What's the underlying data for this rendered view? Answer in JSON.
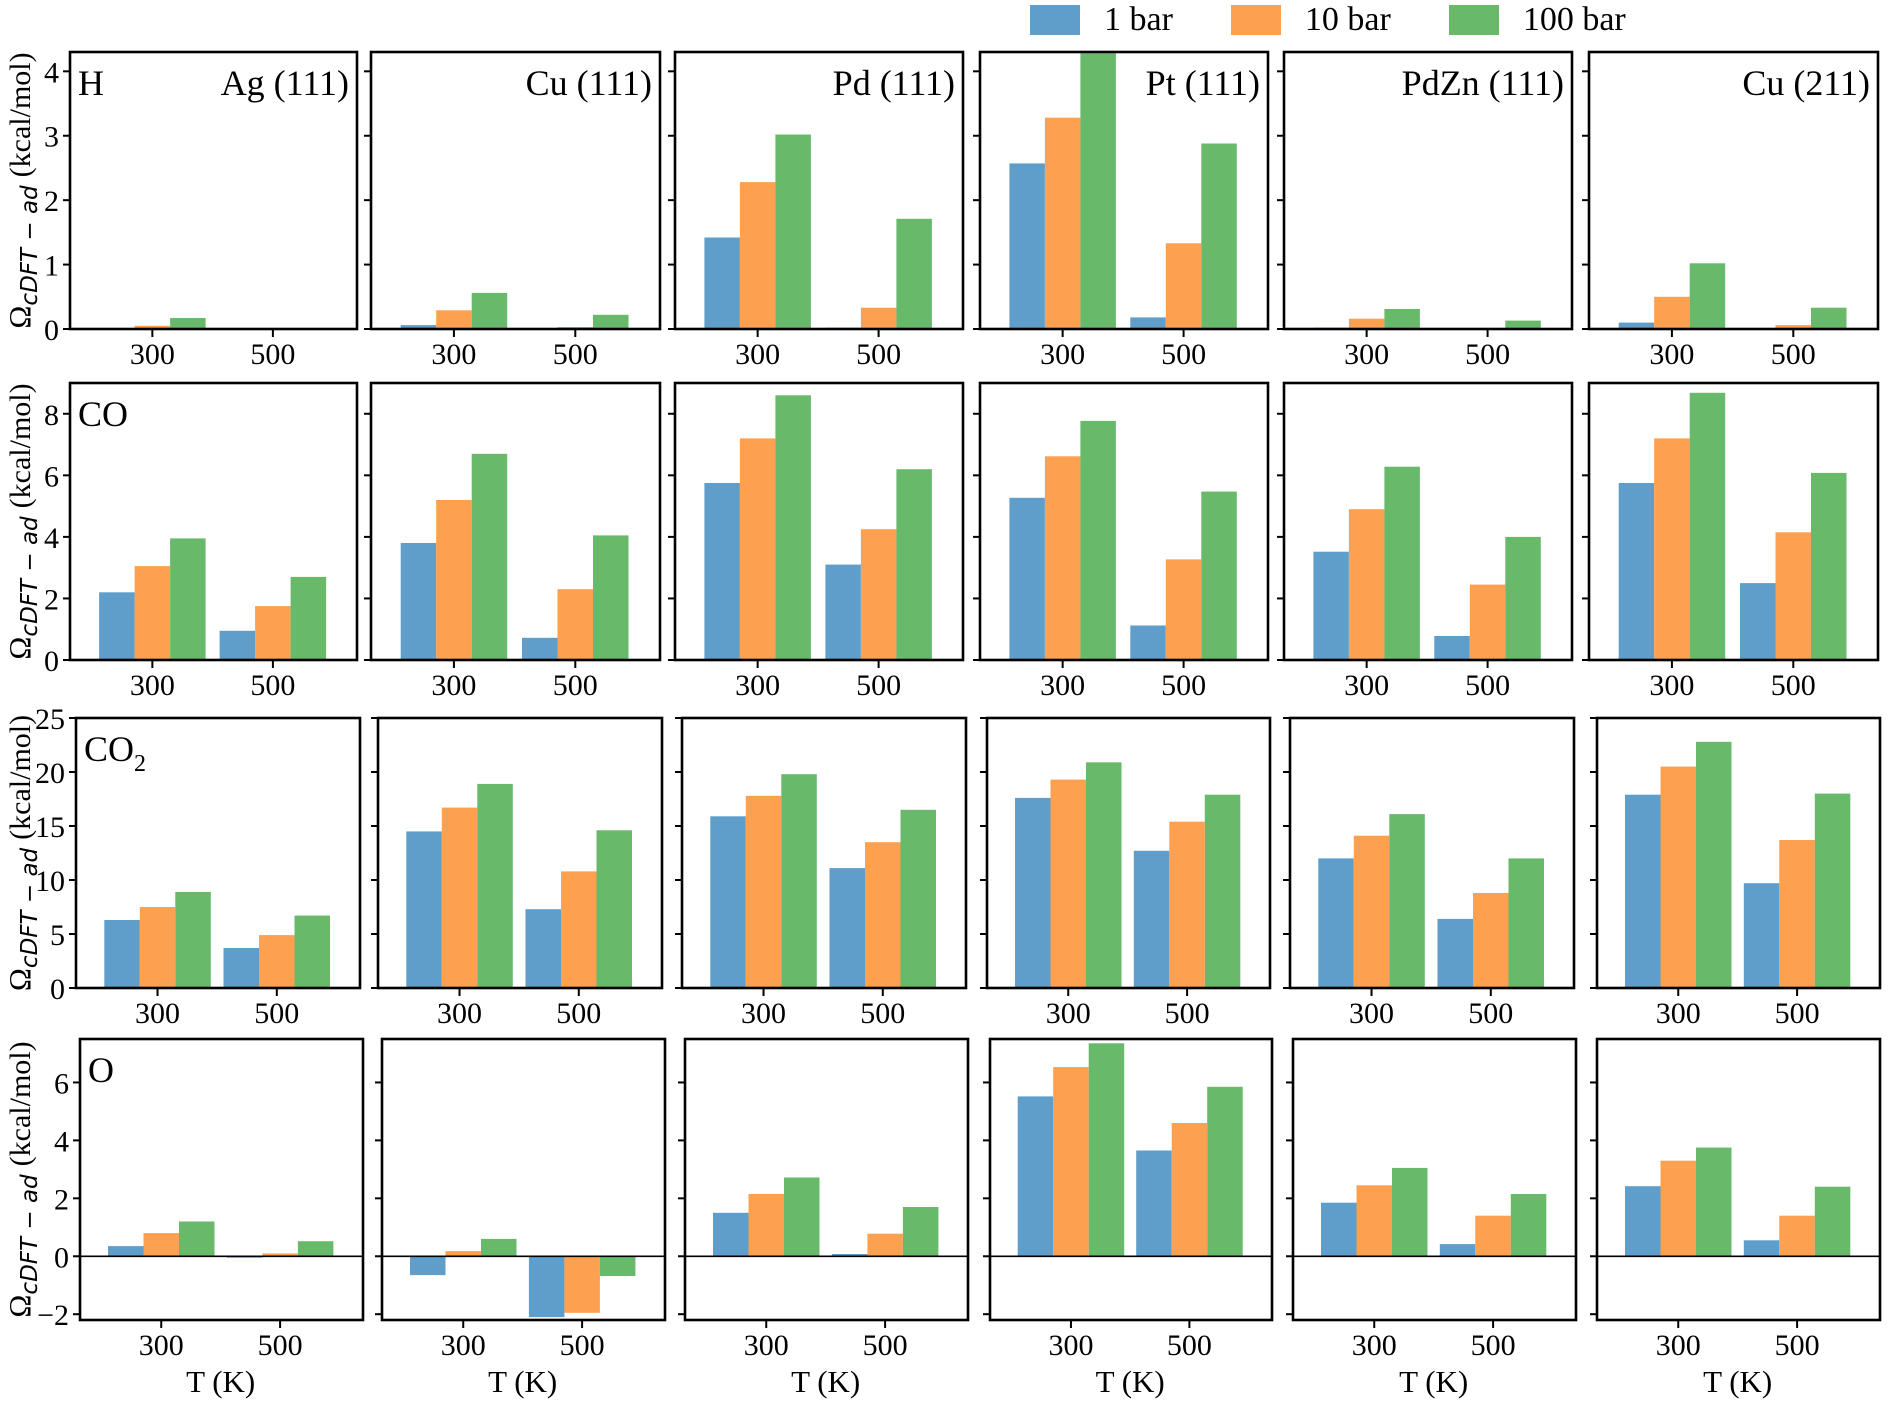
{
  "legend": [
    {
      "label": "1 bar",
      "color": "#5f9ecb"
    },
    {
      "label": "10 bar",
      "color": "#fda04f"
    },
    {
      "label": "100 bar",
      "color": "#69b96a"
    }
  ],
  "chart_data": {
    "type": "bar",
    "title": "",
    "xlabel": "T (K)",
    "ylabel": "Ω_cDFT − ad (kcal/mol)",
    "ylabel_main": "Ω",
    "ylabel_sub": "cDFT − ad",
    "ylabel_unit": "(kcal/mol)",
    "categories": [
      "300",
      "500"
    ],
    "series_names": [
      "1 bar",
      "10 bar",
      "100 bar"
    ],
    "columns": [
      "Ag (111)",
      "Cu (111)",
      "Pd (111)",
      "Pt (111)",
      "PdZn (111)",
      "Cu (211)"
    ],
    "legend_position": "top-right",
    "grid": false,
    "rows": [
      {
        "adsorbate": "H",
        "adsorbate_sub": "",
        "ylim": [
          0,
          4.3
        ],
        "yticks": [
          "0",
          "1",
          "2",
          "3",
          "4"
        ],
        "ytick_values": [
          0,
          1,
          2,
          3,
          4
        ],
        "zero_line": false,
        "panels": [
          {
            "surface": "Ag (111)",
            "series": [
              {
                "name": "1 bar",
                "values": [
                  0.0,
                  0.0
                ]
              },
              {
                "name": "10 bar",
                "values": [
                  0.05,
                  0.0
                ]
              },
              {
                "name": "100 bar",
                "values": [
                  0.17,
                  0.0
                ]
              }
            ]
          },
          {
            "surface": "Cu (111)",
            "series": [
              {
                "name": "1 bar",
                "values": [
                  0.06,
                  0.0
                ]
              },
              {
                "name": "10 bar",
                "values": [
                  0.29,
                  0.03
                ]
              },
              {
                "name": "100 bar",
                "values": [
                  0.56,
                  0.22
                ]
              }
            ]
          },
          {
            "surface": "Pd (111)",
            "series": [
              {
                "name": "1 bar",
                "values": [
                  1.42,
                  0.02
                ]
              },
              {
                "name": "10 bar",
                "values": [
                  2.28,
                  0.33
                ]
              },
              {
                "name": "100 bar",
                "values": [
                  3.02,
                  1.71
                ]
              }
            ]
          },
          {
            "surface": "Pt (111)",
            "series": [
              {
                "name": "1 bar",
                "values": [
                  2.57,
                  0.18
                ]
              },
              {
                "name": "10 bar",
                "values": [
                  3.28,
                  1.33
                ]
              },
              {
                "name": "100 bar",
                "values": [
                  4.28,
                  2.88
                ]
              }
            ]
          },
          {
            "surface": "PdZn (111)",
            "series": [
              {
                "name": "1 bar",
                "values": [
                  0.02,
                  0.0
                ]
              },
              {
                "name": "10 bar",
                "values": [
                  0.16,
                  0.01
                ]
              },
              {
                "name": "100 bar",
                "values": [
                  0.31,
                  0.13
                ]
              }
            ]
          },
          {
            "surface": "Cu (211)",
            "series": [
              {
                "name": "1 bar",
                "values": [
                  0.1,
                  0.0
                ]
              },
              {
                "name": "10 bar",
                "values": [
                  0.5,
                  0.06
                ]
              },
              {
                "name": "100 bar",
                "values": [
                  1.02,
                  0.33
                ]
              }
            ]
          }
        ]
      },
      {
        "adsorbate": "CO",
        "adsorbate_sub": "",
        "ylim": [
          0,
          9.0
        ],
        "yticks": [
          "0",
          "2",
          "4",
          "6",
          "8"
        ],
        "ytick_values": [
          0,
          2,
          4,
          6,
          8
        ],
        "zero_line": false,
        "panels": [
          {
            "surface": "Ag (111)",
            "series": [
              {
                "name": "1 bar",
                "values": [
                  2.2,
                  0.95
                ]
              },
              {
                "name": "10 bar",
                "values": [
                  3.05,
                  1.75
                ]
              },
              {
                "name": "100 bar",
                "values": [
                  3.95,
                  2.7
                ]
              }
            ]
          },
          {
            "surface": "Cu (111)",
            "series": [
              {
                "name": "1 bar",
                "values": [
                  3.8,
                  0.72
                ]
              },
              {
                "name": "10 bar",
                "values": [
                  5.2,
                  2.3
                ]
              },
              {
                "name": "100 bar",
                "values": [
                  6.7,
                  4.05
                ]
              }
            ]
          },
          {
            "surface": "Pd (111)",
            "series": [
              {
                "name": "1 bar",
                "values": [
                  5.75,
                  3.1
                ]
              },
              {
                "name": "10 bar",
                "values": [
                  7.2,
                  4.25
                ]
              },
              {
                "name": "100 bar",
                "values": [
                  8.6,
                  6.2
                ]
              }
            ]
          },
          {
            "surface": "Pt (111)",
            "series": [
              {
                "name": "1 bar",
                "values": [
                  5.27,
                  1.12
                ]
              },
              {
                "name": "10 bar",
                "values": [
                  6.62,
                  3.27
                ]
              },
              {
                "name": "100 bar",
                "values": [
                  7.77,
                  5.47
                ]
              }
            ]
          },
          {
            "surface": "PdZn (111)",
            "series": [
              {
                "name": "1 bar",
                "values": [
                  3.52,
                  0.78
                ]
              },
              {
                "name": "10 bar",
                "values": [
                  4.9,
                  2.45
                ]
              },
              {
                "name": "100 bar",
                "values": [
                  6.28,
                  4.0
                ]
              }
            ]
          },
          {
            "surface": "Cu (211)",
            "series": [
              {
                "name": "1 bar",
                "values": [
                  5.75,
                  2.5
                ]
              },
              {
                "name": "10 bar",
                "values": [
                  7.2,
                  4.15
                ]
              },
              {
                "name": "100 bar",
                "values": [
                  8.68,
                  6.08
                ]
              }
            ]
          }
        ]
      },
      {
        "adsorbate": "CO",
        "adsorbate_sub": "2",
        "ylim": [
          0,
          25
        ],
        "yticks": [
          "0",
          "5",
          "10",
          "15",
          "20",
          "25"
        ],
        "ytick_values": [
          0,
          5,
          10,
          15,
          20,
          25
        ],
        "zero_line": false,
        "panels": [
          {
            "surface": "Ag (111)",
            "series": [
              {
                "name": "1 bar",
                "values": [
                  6.3,
                  3.7
                ]
              },
              {
                "name": "10 bar",
                "values": [
                  7.5,
                  4.9
                ]
              },
              {
                "name": "100 bar",
                "values": [
                  8.9,
                  6.7
                ]
              }
            ]
          },
          {
            "surface": "Cu (111)",
            "series": [
              {
                "name": "1 bar",
                "values": [
                  14.5,
                  7.3
                ]
              },
              {
                "name": "10 bar",
                "values": [
                  16.7,
                  10.8
                ]
              },
              {
                "name": "100 bar",
                "values": [
                  18.9,
                  14.6
                ]
              }
            ]
          },
          {
            "surface": "Pd (111)",
            "series": [
              {
                "name": "1 bar",
                "values": [
                  15.9,
                  11.1
                ]
              },
              {
                "name": "10 bar",
                "values": [
                  17.8,
                  13.5
                ]
              },
              {
                "name": "100 bar",
                "values": [
                  19.8,
                  16.5
                ]
              }
            ]
          },
          {
            "surface": "Pt (111)",
            "series": [
              {
                "name": "1 bar",
                "values": [
                  17.6,
                  12.7
                ]
              },
              {
                "name": "10 bar",
                "values": [
                  19.3,
                  15.4
                ]
              },
              {
                "name": "100 bar",
                "values": [
                  20.9,
                  17.9
                ]
              }
            ]
          },
          {
            "surface": "PdZn (111)",
            "series": [
              {
                "name": "1 bar",
                "values": [
                  12.0,
                  6.4
                ]
              },
              {
                "name": "10 bar",
                "values": [
                  14.1,
                  8.8
                ]
              },
              {
                "name": "100 bar",
                "values": [
                  16.1,
                  12.0
                ]
              }
            ]
          },
          {
            "surface": "Cu (211)",
            "series": [
              {
                "name": "1 bar",
                "values": [
                  17.9,
                  9.7
                ]
              },
              {
                "name": "10 bar",
                "values": [
                  20.5,
                  13.7
                ]
              },
              {
                "name": "100 bar",
                "values": [
                  22.8,
                  18.0
                ]
              }
            ]
          }
        ]
      },
      {
        "adsorbate": "O",
        "adsorbate_sub": "",
        "ylim": [
          -2.2,
          7.5
        ],
        "yticks": [
          "−2",
          "0",
          "2",
          "4",
          "6"
        ],
        "ytick_values": [
          -2,
          0,
          2,
          4,
          6
        ],
        "zero_line": true,
        "panels": [
          {
            "surface": "Ag (111)",
            "series": [
              {
                "name": "1 bar",
                "values": [
                  0.35,
                  -0.05
                ]
              },
              {
                "name": "10 bar",
                "values": [
                  0.8,
                  0.1
                ]
              },
              {
                "name": "100 bar",
                "values": [
                  1.2,
                  0.52
                ]
              }
            ]
          },
          {
            "surface": "Cu (111)",
            "series": [
              {
                "name": "1 bar",
                "values": [
                  -0.65,
                  -2.1
                ]
              },
              {
                "name": "10 bar",
                "values": [
                  0.18,
                  -1.95
                ]
              },
              {
                "name": "100 bar",
                "values": [
                  0.6,
                  -0.68
                ]
              }
            ]
          },
          {
            "surface": "Pd (111)",
            "series": [
              {
                "name": "1 bar",
                "values": [
                  1.5,
                  0.08
                ]
              },
              {
                "name": "10 bar",
                "values": [
                  2.15,
                  0.78
                ]
              },
              {
                "name": "100 bar",
                "values": [
                  2.72,
                  1.7
                ]
              }
            ]
          },
          {
            "surface": "Pt (111)",
            "series": [
              {
                "name": "1 bar",
                "values": [
                  5.52,
                  3.65
                ]
              },
              {
                "name": "10 bar",
                "values": [
                  6.53,
                  4.6
                ]
              },
              {
                "name": "100 bar",
                "values": [
                  7.35,
                  5.85
                ]
              }
            ]
          },
          {
            "surface": "PdZn (111)",
            "series": [
              {
                "name": "1 bar",
                "values": [
                  1.85,
                  0.42
                ]
              },
              {
                "name": "10 bar",
                "values": [
                  2.45,
                  1.4
                ]
              },
              {
                "name": "100 bar",
                "values": [
                  3.05,
                  2.15
                ]
              }
            ]
          },
          {
            "surface": "Cu (211)",
            "series": [
              {
                "name": "1 bar",
                "values": [
                  2.42,
                  0.55
                ]
              },
              {
                "name": "10 bar",
                "values": [
                  3.3,
                  1.4
                ]
              },
              {
                "name": "100 bar",
                "values": [
                  3.75,
                  2.4
                ]
              }
            ]
          }
        ]
      }
    ]
  }
}
